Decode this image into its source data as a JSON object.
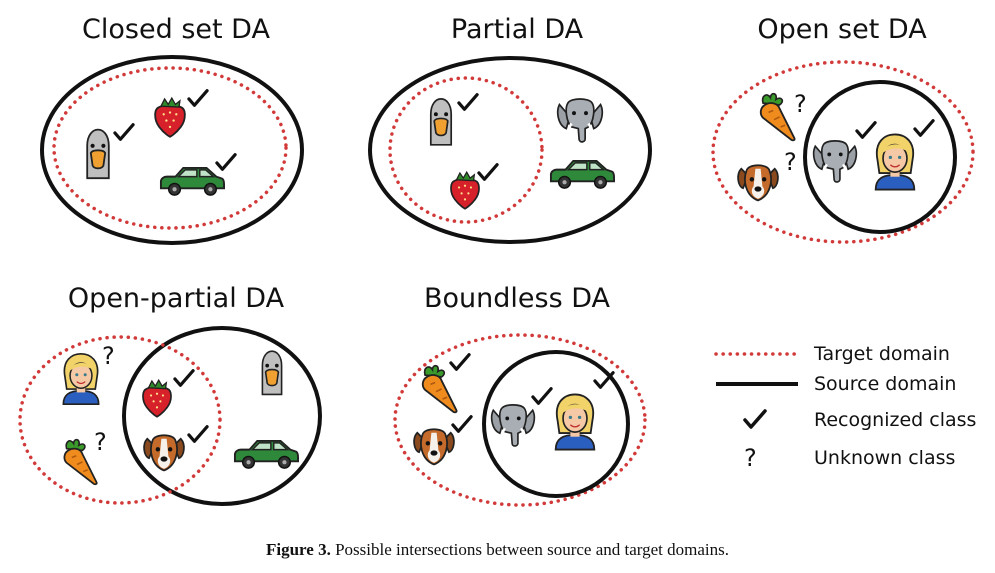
{
  "panels": [
    {
      "title": "Closed set DA"
    },
    {
      "title": "Partial DA"
    },
    {
      "title": "Open set DA"
    },
    {
      "title": "Open-partial DA"
    },
    {
      "title": "Boundless DA"
    }
  ],
  "legend": {
    "target": "Target domain",
    "source": "Source domain",
    "recognized": "Recognized class",
    "unknown": "Unknown class",
    "unknown_symbol": "?"
  },
  "caption": {
    "label": "Figure 3.",
    "text": "Possible intersections between source and target domains."
  },
  "colors": {
    "target": "#d23a3a",
    "source": "#111111"
  }
}
